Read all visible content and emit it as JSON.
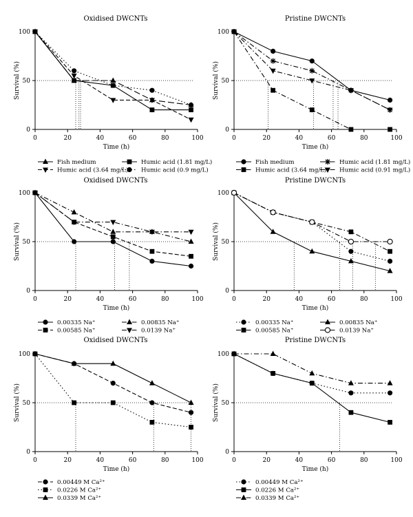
{
  "chart_data": [
    {
      "type": "line",
      "title": "Oxidised DWCNTs",
      "xlabel": "Time (h)",
      "ylabel": "Survival (%)",
      "xlim": [
        0,
        100
      ],
      "ylim": [
        0,
        100
      ],
      "xticks": [
        "0",
        "20",
        "40",
        "60",
        "80",
        "100"
      ],
      "yticks": [
        "0",
        "50",
        "100"
      ],
      "hline_y": 50,
      "vlines_x": [
        25,
        27,
        28
      ],
      "legend_cols": 2,
      "series": [
        {
          "name": "Fish medium",
          "marker": "triangle",
          "dash": "long",
          "x": [
            0,
            24,
            48,
            72,
            96
          ],
          "y": [
            100,
            50,
            50,
            30,
            25
          ]
        },
        {
          "name": "Humic acid (1.81 mg/L)",
          "marker": "square",
          "dash": "solid",
          "x": [
            0,
            24,
            48,
            72,
            96
          ],
          "y": [
            100,
            50,
            45,
            20,
            20
          ]
        },
        {
          "name": "Humic acid (3.64 mg/L)",
          "marker": "triangle-down",
          "dash": "dash",
          "x": [
            0,
            24,
            48,
            72,
            96
          ],
          "y": [
            100,
            55,
            30,
            30,
            10
          ]
        },
        {
          "name": "Humic acid (0.9 mg/L)",
          "marker": "circle",
          "dash": "dot",
          "x": [
            0,
            24,
            48,
            72,
            96
          ],
          "y": [
            100,
            60,
            45,
            40,
            25
          ]
        }
      ]
    },
    {
      "type": "line",
      "title": "Pristine DWCNTs",
      "xlabel": "Time (h)",
      "ylabel": "Survival (%)",
      "xlim": [
        0,
        100
      ],
      "ylim": [
        0,
        100
      ],
      "xticks": [
        "0",
        "20",
        "40",
        "60",
        "80",
        "100"
      ],
      "yticks": [
        "0",
        "50",
        "100"
      ],
      "hline_y": 50,
      "vlines_x": [
        21,
        49,
        61,
        64
      ],
      "legend_cols": 2,
      "series": [
        {
          "name": "Fish medium",
          "marker": "circle",
          "dash": "solid",
          "x": [
            0,
            24,
            48,
            72,
            96
          ],
          "y": [
            100,
            80,
            70,
            40,
            30
          ]
        },
        {
          "name": "Humic acid (1.81 mg/L)",
          "marker": "star",
          "dash": "dashdot",
          "x": [
            0,
            24,
            48,
            72,
            96
          ],
          "y": [
            100,
            70,
            60,
            40,
            20
          ]
        },
        {
          "name": "Humic acid (3.64 mg/L)",
          "marker": "square",
          "dash": "dashdot",
          "x": [
            0,
            24,
            48,
            72,
            96
          ],
          "y": [
            100,
            40,
            20,
            0,
            0
          ]
        },
        {
          "name": "Humic acid (0.91 mg/L)",
          "marker": "triangle-down",
          "dash": "dashdot",
          "x": [
            0,
            24,
            48,
            72,
            96
          ],
          "y": [
            100,
            60,
            50,
            40,
            20
          ]
        }
      ]
    },
    {
      "type": "line",
      "title": "Oxidised DWCNTs",
      "xlabel": "Time (h)",
      "ylabel": "Survival (%)",
      "xlim": [
        0,
        100
      ],
      "ylim": [
        0,
        100
      ],
      "xticks": [
        "0",
        "20",
        "40",
        "60",
        "80",
        "100"
      ],
      "yticks": [
        "0",
        "50",
        "100"
      ],
      "hline_y": 50,
      "vlines_x": [
        25,
        49,
        58
      ],
      "legend_cols": 2,
      "series": [
        {
          "name": "0.00335 Na⁺",
          "marker": "circle",
          "dash": "solid",
          "x": [
            0,
            24,
            48,
            72,
            96
          ],
          "y": [
            100,
            50,
            50,
            30,
            25
          ]
        },
        {
          "name": "0.00835 Na⁺",
          "marker": "triangle",
          "dash": "dashdot",
          "x": [
            0,
            24,
            48,
            72,
            96
          ],
          "y": [
            100,
            80,
            60,
            60,
            50
          ]
        },
        {
          "name": "0.00585 Na⁺",
          "marker": "square",
          "dash": "dash",
          "x": [
            0,
            24,
            48,
            72,
            96
          ],
          "y": [
            100,
            70,
            55,
            40,
            35
          ]
        },
        {
          "name": "0.0139 Na⁺",
          "marker": "triangle-down",
          "dash": "dashdot",
          "x": [
            0,
            24,
            48,
            72,
            96
          ],
          "y": [
            100,
            70,
            70,
            60,
            60
          ]
        }
      ]
    },
    {
      "type": "line",
      "title": "Pristine DWCNTs",
      "xlabel": "Time (h)",
      "ylabel": "Survival (%)",
      "xlim": [
        0,
        100
      ],
      "ylim": [
        0,
        100
      ],
      "xticks": [
        "0",
        "20",
        "40",
        "60",
        "80",
        "100"
      ],
      "yticks": [
        "0",
        "50",
        "100"
      ],
      "hline_y": 50,
      "vlines_x": [
        37,
        65,
        73,
        87
      ],
      "legend_cols": 2,
      "series": [
        {
          "name": "0.00335 Na⁺",
          "marker": "circle",
          "dash": "dot",
          "x": [
            0,
            24,
            48,
            72,
            96
          ],
          "y": [
            100,
            80,
            70,
            40,
            30
          ]
        },
        {
          "name": "0.00835 Na⁺",
          "marker": "triangle",
          "dash": "solid",
          "x": [
            0,
            24,
            48,
            72,
            96
          ],
          "y": [
            100,
            60,
            40,
            30,
            20
          ]
        },
        {
          "name": "0.00585 Na⁺",
          "marker": "square",
          "dash": "dashdot",
          "x": [
            0,
            24,
            48,
            72,
            96
          ],
          "y": [
            100,
            80,
            70,
            60,
            40
          ]
        },
        {
          "name": "0.0139 Na⁺",
          "marker": "open-circle",
          "dash": "dashdot",
          "x": [
            0,
            24,
            48,
            72,
            96
          ],
          "y": [
            100,
            80,
            70,
            50,
            50
          ]
        }
      ]
    },
    {
      "type": "line",
      "title": "Oxidised DWCNTs",
      "xlabel": "Time (h)",
      "ylabel": "Survival (%)",
      "xlim": [
        0,
        100
      ],
      "ylim": [
        0,
        100
      ],
      "xticks": [
        "0",
        "20",
        "40",
        "60",
        "80",
        "100"
      ],
      "yticks": [
        "0",
        "50",
        "100"
      ],
      "hline_y": 50,
      "vlines_x": [
        25,
        73,
        96
      ],
      "legend_cols": 1,
      "series": [
        {
          "name": "0.00449 M Ca²⁺",
          "marker": "circle",
          "dash": "dash",
          "x": [
            0,
            24,
            48,
            72,
            96
          ],
          "y": [
            100,
            90,
            70,
            50,
            40
          ]
        },
        {
          "name": "0.0226 M Ca²⁺",
          "marker": "square",
          "dash": "dot",
          "x": [
            0,
            24,
            48,
            72,
            96
          ],
          "y": [
            100,
            50,
            50,
            30,
            25
          ]
        },
        {
          "name": "0.0339 M Ca²⁺",
          "marker": "triangle",
          "dash": "solid",
          "x": [
            0,
            24,
            48,
            72,
            96
          ],
          "y": [
            100,
            90,
            90,
            70,
            50
          ]
        }
      ]
    },
    {
      "type": "line",
      "title": "Pristine DWCNTs",
      "xlabel": "Time (h)",
      "ylabel": "Survival (%)",
      "xlim": [
        0,
        100
      ],
      "ylim": [
        0,
        100
      ],
      "xticks": [
        "0",
        "20",
        "40",
        "60",
        "80",
        "100"
      ],
      "yticks": [
        "0",
        "50",
        "100"
      ],
      "hline_y": 50,
      "vlines_x": [
        65
      ],
      "legend_cols": 1,
      "series": [
        {
          "name": "0.00449 M Ca²⁺",
          "marker": "circle",
          "dash": "dot",
          "x": [
            0,
            24,
            48,
            72,
            96
          ],
          "y": [
            100,
            80,
            70,
            60,
            60
          ]
        },
        {
          "name": "0.0226 M Ca²⁺",
          "marker": "square",
          "dash": "solid",
          "x": [
            0,
            24,
            48,
            72,
            96
          ],
          "y": [
            100,
            80,
            70,
            40,
            30
          ]
        },
        {
          "name": "0.0339 M Ca²⁺",
          "marker": "triangle",
          "dash": "dashdot",
          "x": [
            0,
            24,
            48,
            72,
            96
          ],
          "y": [
            100,
            100,
            80,
            70,
            70
          ]
        }
      ]
    }
  ]
}
